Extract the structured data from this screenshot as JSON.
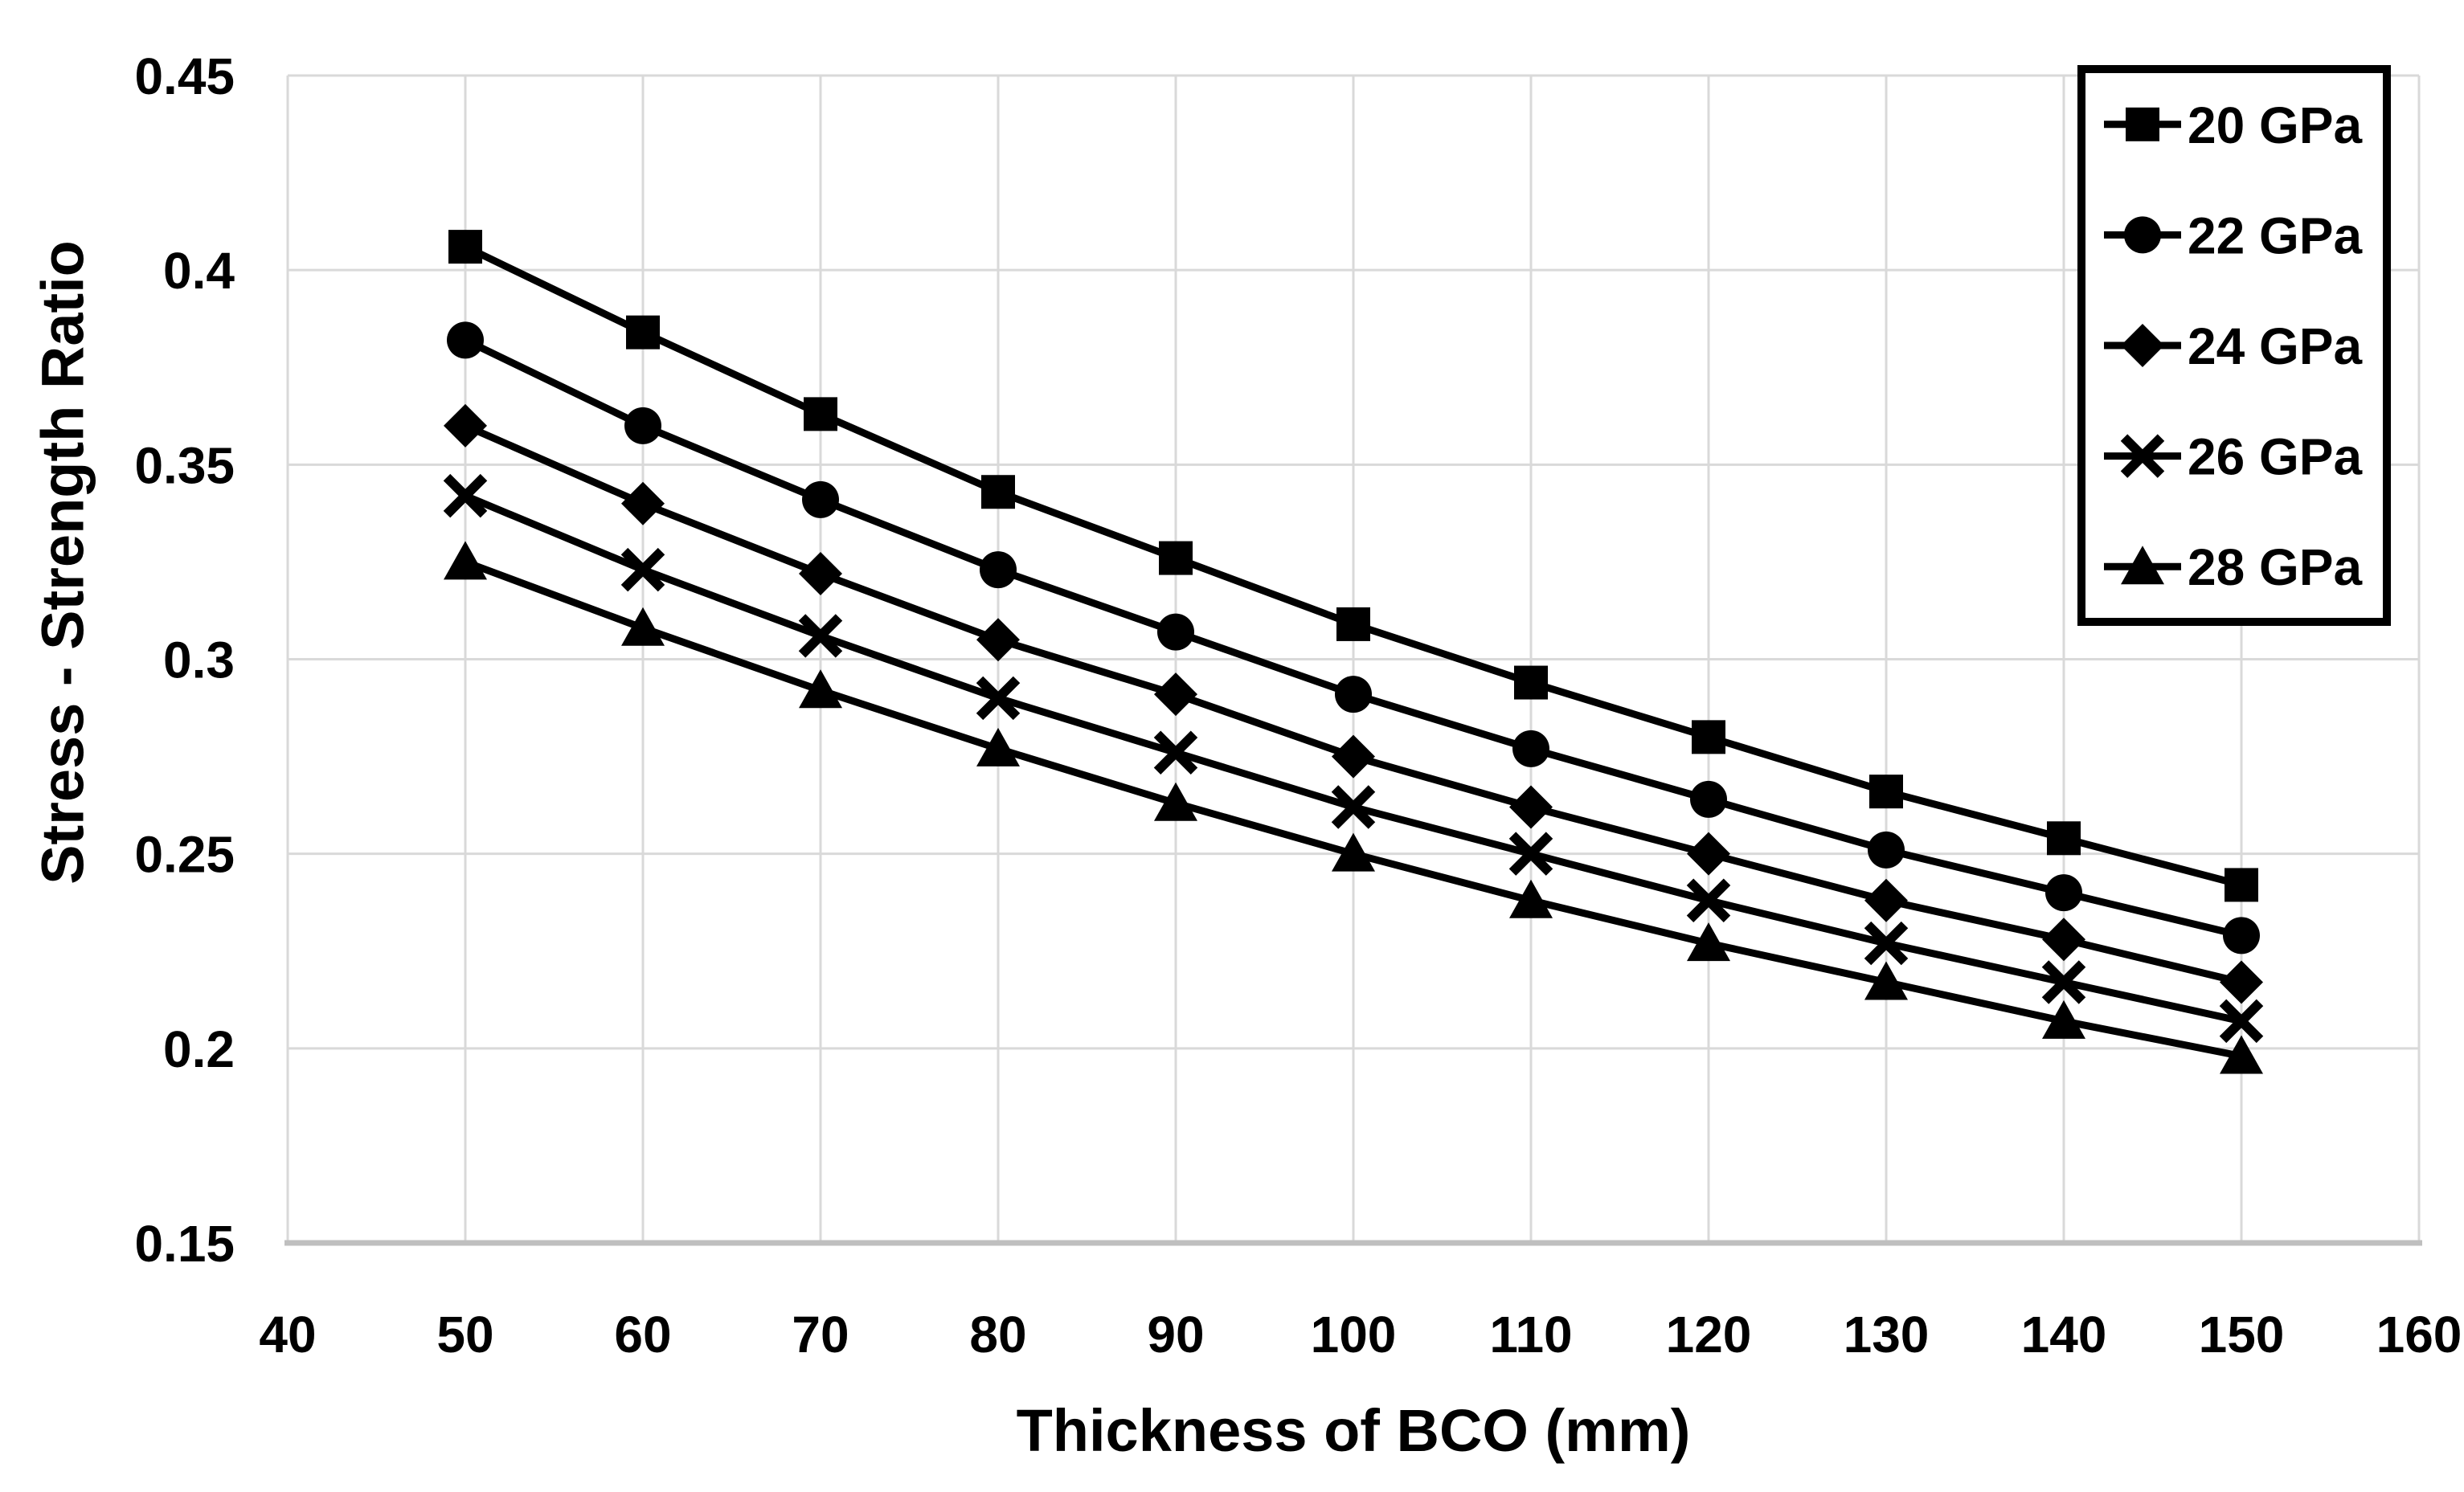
{
  "chart_data": {
    "type": "line",
    "title": "",
    "xlabel": "Thickness of BCO (mm)",
    "ylabel": "Stress - Strength Ratio",
    "xlim": [
      40,
      160
    ],
    "ylim": [
      0.15,
      0.45
    ],
    "grid": true,
    "legend_position": "top-right",
    "x_ticks": [
      {
        "value": 40,
        "label": "40"
      },
      {
        "value": 50,
        "label": "50"
      },
      {
        "value": 60,
        "label": "60"
      },
      {
        "value": 70,
        "label": "70"
      },
      {
        "value": 80,
        "label": "80"
      },
      {
        "value": 90,
        "label": "90"
      },
      {
        "value": 100,
        "label": "100"
      },
      {
        "value": 110,
        "label": "110"
      },
      {
        "value": 120,
        "label": "120"
      },
      {
        "value": 130,
        "label": "130"
      },
      {
        "value": 140,
        "label": "140"
      },
      {
        "value": 150,
        "label": "150"
      },
      {
        "value": 160,
        "label": "160"
      }
    ],
    "y_ticks": [
      {
        "value": 0.45,
        "label": "0.45"
      },
      {
        "value": 0.4,
        "label": "0.4"
      },
      {
        "value": 0.35,
        "label": "0.35"
      },
      {
        "value": 0.3,
        "label": "0.3"
      },
      {
        "value": 0.25,
        "label": "0.25"
      },
      {
        "value": 0.2,
        "label": "0.2"
      },
      {
        "value": 0.15,
        "label": "0.15"
      }
    ],
    "x": [
      50,
      60,
      70,
      80,
      90,
      100,
      110,
      120,
      130,
      140,
      150
    ],
    "series": [
      {
        "name": "20 GPa",
        "marker": "square",
        "values": [
          0.406,
          0.384,
          0.363,
          0.343,
          0.326,
          0.309,
          0.294,
          0.28,
          0.266,
          0.254,
          0.242
        ]
      },
      {
        "name": "22 GPa",
        "marker": "circle",
        "values": [
          0.382,
          0.36,
          0.341,
          0.323,
          0.307,
          0.291,
          0.277,
          0.264,
          0.251,
          0.24,
          0.229
        ]
      },
      {
        "name": "24 GPa",
        "marker": "diamond",
        "values": [
          0.36,
          0.34,
          0.322,
          0.305,
          0.291,
          0.275,
          0.262,
          0.25,
          0.238,
          0.228,
          0.217
        ]
      },
      {
        "name": "26 GPa",
        "marker": "x",
        "values": [
          0.342,
          0.323,
          0.306,
          0.29,
          0.276,
          0.262,
          0.25,
          0.238,
          0.227,
          0.217,
          0.207
        ]
      },
      {
        "name": "28 GPa",
        "marker": "triangle",
        "values": [
          0.325,
          0.308,
          0.292,
          0.277,
          0.263,
          0.25,
          0.238,
          0.227,
          0.217,
          0.207,
          0.198
        ]
      }
    ],
    "colors": {
      "series_line": "#000000",
      "marker_fill": "#000000",
      "gridline": "#d9d9d9",
      "axis_line": "#bfbfbf",
      "text": "#000000",
      "background": "#ffffff",
      "legend_border": "#000000",
      "legend_background": "#ffffff"
    }
  }
}
